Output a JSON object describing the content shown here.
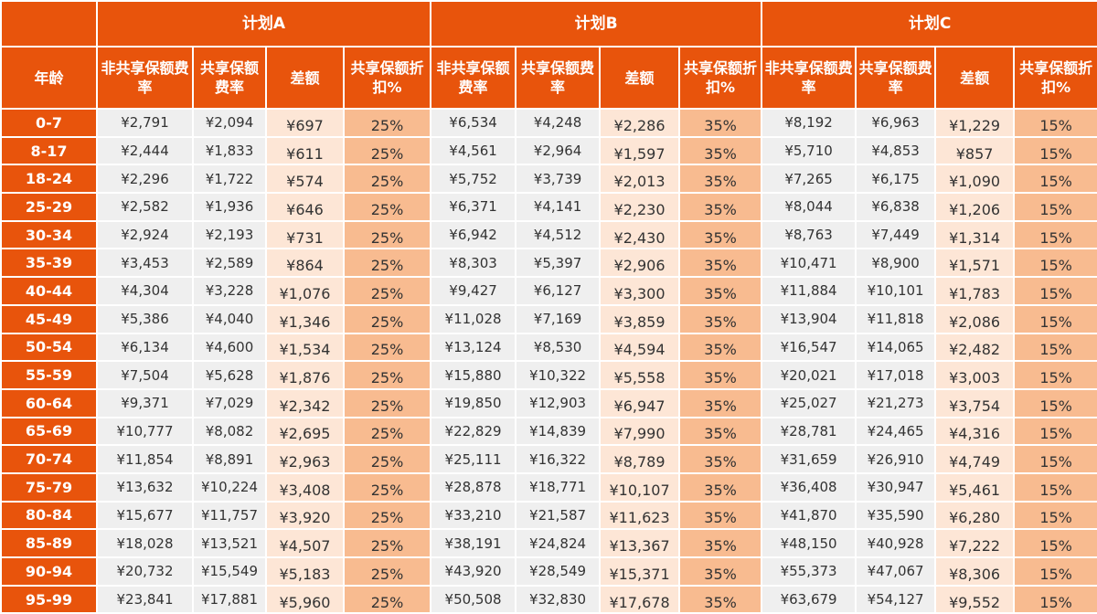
{
  "plans": [
    {
      "name": "计划A",
      "columns": [
        "非共享保额费率",
        "共享保额费率",
        "差额",
        "共享保额折扣%"
      ]
    },
    {
      "name": "计划B",
      "columns": [
        "非共享保额费率",
        "共享保额费率",
        "差额",
        "共享保额折扣%"
      ]
    },
    {
      "name": "计划C",
      "columns": [
        "非共享保额费率",
        "共享保额费率",
        "差额",
        "共享保额折扣%"
      ]
    }
  ],
  "age_header": "年龄",
  "rows": [
    {
      "age": "0-7",
      "cells": [
        "¥2,791",
        "¥2,094",
        "¥697",
        "25%",
        "¥6,534",
        "¥4,248",
        "¥2,286",
        "35%",
        "¥8,192",
        "¥6,963",
        "¥1,229",
        "15%"
      ]
    },
    {
      "age": "8-17",
      "cells": [
        "¥2,444",
        "¥1,833",
        "¥611",
        "25%",
        "¥4,561",
        "¥2,964",
        "¥1,597",
        "35%",
        "¥5,710",
        "¥4,853",
        "¥857",
        "15%"
      ]
    },
    {
      "age": "18-24",
      "cells": [
        "¥2,296",
        "¥1,722",
        "¥574",
        "25%",
        "¥5,752",
        "¥3,739",
        "¥2,013",
        "35%",
        "¥7,265",
        "¥6,175",
        "¥1,090",
        "15%"
      ]
    },
    {
      "age": "25-29",
      "cells": [
        "¥2,582",
        "¥1,936",
        "¥646",
        "25%",
        "¥6,371",
        "¥4,141",
        "¥2,230",
        "35%",
        "¥8,044",
        "¥6,838",
        "¥1,206",
        "15%"
      ]
    },
    {
      "age": "30-34",
      "cells": [
        "¥2,924",
        "¥2,193",
        "¥731",
        "25%",
        "¥6,942",
        "¥4,512",
        "¥2,430",
        "35%",
        "¥8,763",
        "¥7,449",
        "¥1,314",
        "15%"
      ]
    },
    {
      "age": "35-39",
      "cells": [
        "¥3,453",
        "¥2,589",
        "¥864",
        "25%",
        "¥8,303",
        "¥5,397",
        "¥2,906",
        "35%",
        "¥10,471",
        "¥8,900",
        "¥1,571",
        "15%"
      ]
    },
    {
      "age": "40-44",
      "cells": [
        "¥4,304",
        "¥3,228",
        "¥1,076",
        "25%",
        "¥9,427",
        "¥6,127",
        "¥3,300",
        "35%",
        "¥11,884",
        "¥10,101",
        "¥1,783",
        "15%"
      ]
    },
    {
      "age": "45-49",
      "cells": [
        "¥5,386",
        "¥4,040",
        "¥1,346",
        "25%",
        "¥11,028",
        "¥7,169",
        "¥3,859",
        "35%",
        "¥13,904",
        "¥11,818",
        "¥2,086",
        "15%"
      ]
    },
    {
      "age": "50-54",
      "cells": [
        "¥6,134",
        "¥4,600",
        "¥1,534",
        "25%",
        "¥13,124",
        "¥8,530",
        "¥4,594",
        "35%",
        "¥16,547",
        "¥14,065",
        "¥2,482",
        "15%"
      ]
    },
    {
      "age": "55-59",
      "cells": [
        "¥7,504",
        "¥5,628",
        "¥1,876",
        "25%",
        "¥15,880",
        "¥10,322",
        "¥5,558",
        "35%",
        "¥20,021",
        "¥17,018",
        "¥3,003",
        "15%"
      ]
    },
    {
      "age": "60-64",
      "cells": [
        "¥9,371",
        "¥7,029",
        "¥2,342",
        "25%",
        "¥19,850",
        "¥12,903",
        "¥6,947",
        "35%",
        "¥25,027",
        "¥21,273",
        "¥3,754",
        "15%"
      ]
    },
    {
      "age": "65-69",
      "cells": [
        "¥10,777",
        "¥8,082",
        "¥2,695",
        "25%",
        "¥22,829",
        "¥14,839",
        "¥7,990",
        "35%",
        "¥28,781",
        "¥24,465",
        "¥4,316",
        "15%"
      ]
    },
    {
      "age": "70-74",
      "cells": [
        "¥11,854",
        "¥8,891",
        "¥2,963",
        "25%",
        "¥25,111",
        "¥16,322",
        "¥8,789",
        "35%",
        "¥31,659",
        "¥26,910",
        "¥4,749",
        "15%"
      ]
    },
    {
      "age": "75-79",
      "cells": [
        "¥13,632",
        "¥10,224",
        "¥3,408",
        "25%",
        "¥28,878",
        "¥18,771",
        "¥10,107",
        "35%",
        "¥36,408",
        "¥30,947",
        "¥5,461",
        "15%"
      ]
    },
    {
      "age": "80-84",
      "cells": [
        "¥15,677",
        "¥11,757",
        "¥3,920",
        "25%",
        "¥33,210",
        "¥21,587",
        "¥11,623",
        "35%",
        "¥41,870",
        "¥35,590",
        "¥6,280",
        "15%"
      ]
    },
    {
      "age": "85-89",
      "cells": [
        "¥18,028",
        "¥13,521",
        "¥4,507",
        "25%",
        "¥38,191",
        "¥24,824",
        "¥13,367",
        "35%",
        "¥48,150",
        "¥40,928",
        "¥7,222",
        "15%"
      ]
    },
    {
      "age": "90-94",
      "cells": [
        "¥20,732",
        "¥15,549",
        "¥5,183",
        "25%",
        "¥43,920",
        "¥28,549",
        "¥15,371",
        "35%",
        "¥55,373",
        "¥47,067",
        "¥8,306",
        "15%"
      ]
    },
    {
      "age": "95-99",
      "cells": [
        "¥23,841",
        "¥17,881",
        "¥5,960",
        "25%",
        "¥50,508",
        "¥32,830",
        "¥17,678",
        "35%",
        "¥63,679",
        "¥54,127",
        "¥9,552",
        "15%"
      ]
    }
  ]
}
